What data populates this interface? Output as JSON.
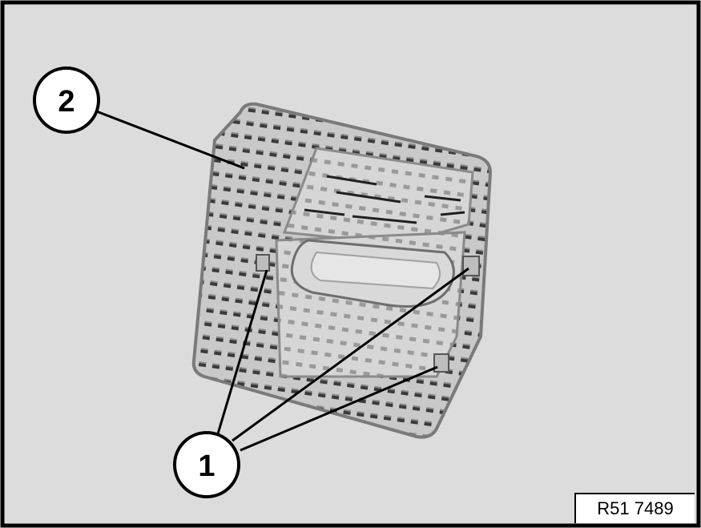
{
  "figure": {
    "callouts": [
      {
        "id": "1",
        "label": "1"
      },
      {
        "id": "2",
        "label": "2"
      }
    ],
    "reference_code": "R51 7489",
    "colors": {
      "background": "#dcdcdc",
      "frame": "#000000",
      "part_fill": "#c8c8c8",
      "part_edge": "#7a7a7a",
      "slot": "#3a3a3a"
    }
  }
}
